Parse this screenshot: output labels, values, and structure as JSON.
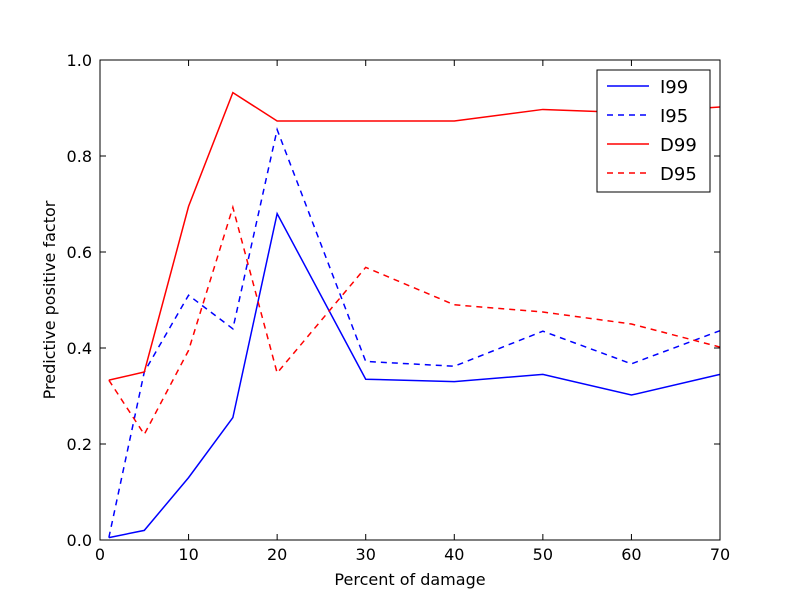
{
  "chart_data": {
    "type": "line",
    "title": "",
    "xlabel": "Percent of damage",
    "ylabel": "Predictive positive factor",
    "xlim": [
      0,
      70
    ],
    "ylim": [
      0.0,
      1.0
    ],
    "xticks": [
      0,
      10,
      20,
      30,
      40,
      50,
      60,
      70
    ],
    "xtick_labels": [
      "0",
      "10",
      "20",
      "30",
      "40",
      "50",
      "60",
      "70"
    ],
    "yticks": [
      0.0,
      0.2,
      0.4,
      0.6,
      0.8,
      1.0
    ],
    "ytick_labels": [
      "0.0",
      "0.2",
      "0.4",
      "0.6",
      "0.8",
      "1.0"
    ],
    "grid": false,
    "legend_position": "top-right",
    "x": [
      1,
      5,
      10,
      15,
      20,
      30,
      40,
      50,
      60,
      70
    ],
    "series": [
      {
        "name": "I99",
        "color": "#0000ff",
        "dash": "solid",
        "values": [
          0.005,
          0.02,
          0.13,
          0.255,
          0.68,
          0.335,
          0.33,
          0.345,
          0.302,
          0.345
        ]
      },
      {
        "name": "I95",
        "color": "#0000ff",
        "dash": "dashed",
        "values": [
          0.005,
          0.35,
          0.51,
          0.44,
          0.855,
          0.372,
          0.362,
          0.435,
          0.367,
          0.436
        ]
      },
      {
        "name": "D99",
        "color": "#ff0000",
        "dash": "solid",
        "values": [
          0.333,
          0.35,
          0.695,
          0.932,
          0.873,
          0.873,
          0.873,
          0.897,
          0.89,
          0.902
        ]
      },
      {
        "name": "D95",
        "color": "#ff0000",
        "dash": "dashed",
        "values": [
          0.333,
          0.22,
          0.395,
          0.693,
          0.348,
          0.568,
          0.49,
          0.475,
          0.45,
          0.402
        ]
      }
    ]
  }
}
